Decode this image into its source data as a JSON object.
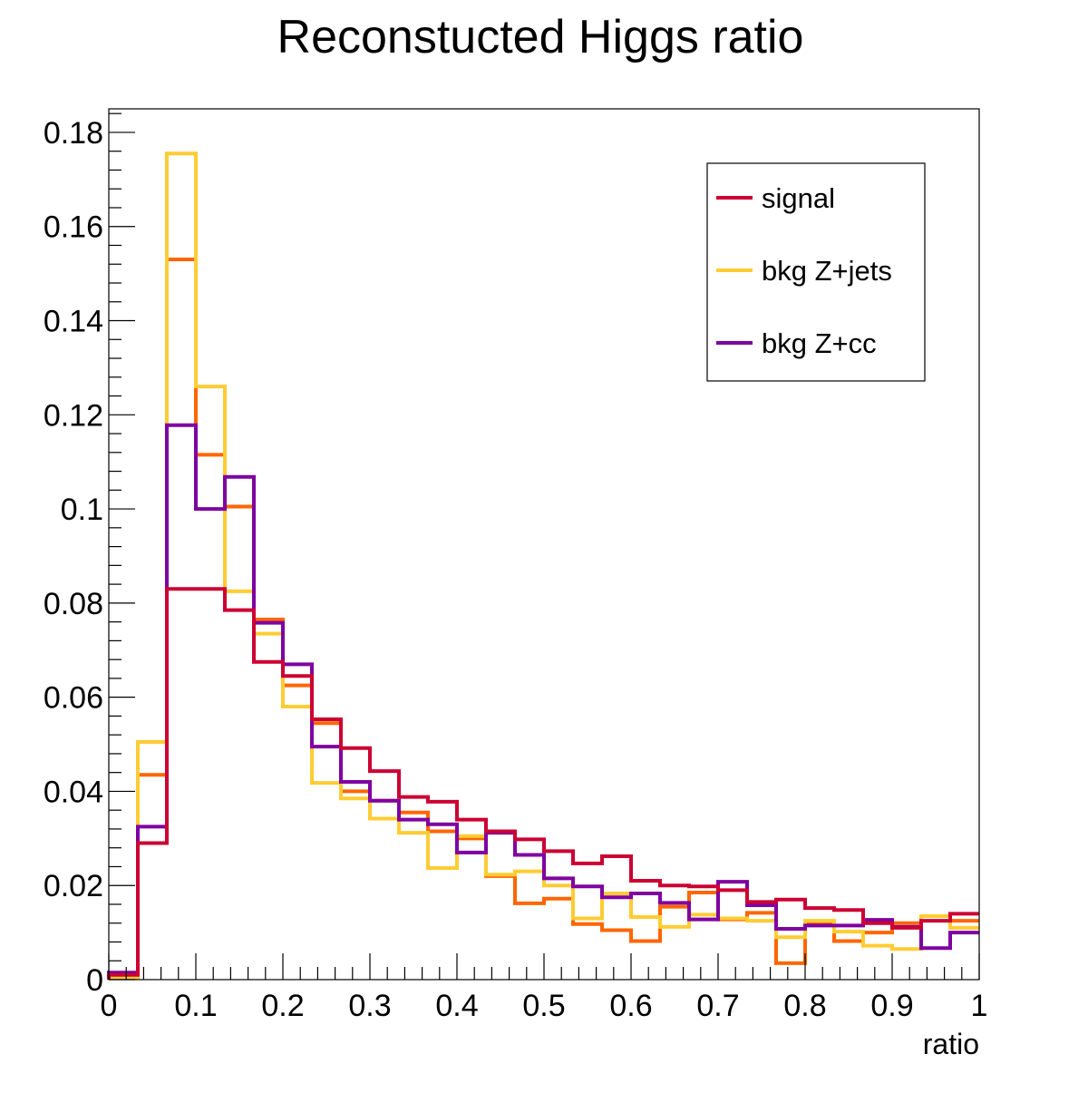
{
  "chart_data": {
    "type": "line",
    "style": "step-histogram",
    "title": "Reconstucted Higgs ratio",
    "xlabel": "ratio",
    "ylabel": "",
    "xlim": [
      0,
      1
    ],
    "ylim": [
      0,
      0.185
    ],
    "bin_width": 0.0333,
    "x_ticks": [
      {
        "value": 0,
        "label": "0"
      },
      {
        "value": 0.1,
        "label": "0.1"
      },
      {
        "value": 0.2,
        "label": "0.2"
      },
      {
        "value": 0.3,
        "label": "0.3"
      },
      {
        "value": 0.4,
        "label": "0.4"
      },
      {
        "value": 0.5,
        "label": "0.5"
      },
      {
        "value": 0.6,
        "label": "0.6"
      },
      {
        "value": 0.7,
        "label": "0.7"
      },
      {
        "value": 0.8,
        "label": "0.8"
      },
      {
        "value": 0.9,
        "label": "0.9"
      },
      {
        "value": 1,
        "label": "1"
      }
    ],
    "y_ticks": [
      {
        "value": 0,
        "label": "0"
      },
      {
        "value": 0.02,
        "label": "0.02"
      },
      {
        "value": 0.04,
        "label": "0.04"
      },
      {
        "value": 0.06,
        "label": "0.06"
      },
      {
        "value": 0.08,
        "label": "0.08"
      },
      {
        "value": 0.1,
        "label": "0.1"
      },
      {
        "value": 0.12,
        "label": "0.12"
      },
      {
        "value": 0.14,
        "label": "0.14"
      },
      {
        "value": 0.16,
        "label": "0.16"
      },
      {
        "value": 0.18,
        "label": "0.18"
      }
    ],
    "grid": false,
    "legend_position": "top-right",
    "series": [
      {
        "name": "",
        "color": "#ff6600",
        "in_legend": false,
        "values": [
          0.0005,
          0.0435,
          0.153,
          0.1115,
          0.1005,
          0.0765,
          0.0625,
          0.0545,
          0.04,
          0.038,
          0.0355,
          0.0315,
          0.03,
          0.022,
          0.0162,
          0.0172,
          0.0118,
          0.0105,
          0.0082,
          0.0155,
          0.0185,
          0.0128,
          0.0142,
          0.0035,
          0.0122,
          0.0082,
          0.01,
          0.012,
          0.0135,
          0.0125
        ]
      },
      {
        "name": "bkg Z+jets",
        "color": "#ffcc33",
        "in_legend": true,
        "values": [
          0.0005,
          0.0505,
          0.1755,
          0.126,
          0.0825,
          0.0735,
          0.058,
          0.0418,
          0.0385,
          0.0342,
          0.0312,
          0.0237,
          0.0305,
          0.0223,
          0.023,
          0.02,
          0.013,
          0.0183,
          0.0133,
          0.0112,
          0.0138,
          0.013,
          0.0125,
          0.009,
          0.0125,
          0.0102,
          0.0072,
          0.0065,
          0.0135,
          0.011
        ]
      },
      {
        "name": "bkg Z+cc",
        "color": "#7f00a0",
        "in_legend": true,
        "values": [
          0.0015,
          0.0325,
          0.1178,
          0.1,
          0.1068,
          0.0758,
          0.067,
          0.0495,
          0.042,
          0.038,
          0.034,
          0.033,
          0.027,
          0.0312,
          0.0265,
          0.0215,
          0.0198,
          0.0175,
          0.0183,
          0.0163,
          0.0128,
          0.0208,
          0.0158,
          0.0108,
          0.0115,
          0.0115,
          0.0127,
          0.0112,
          0.0067,
          0.01
        ]
      },
      {
        "name": "signal",
        "color": "#cc0033",
        "in_legend": true,
        "values": [
          0.001,
          0.029,
          0.083,
          0.083,
          0.0785,
          0.0675,
          0.0645,
          0.0553,
          0.0492,
          0.0443,
          0.0388,
          0.0378,
          0.034,
          0.0315,
          0.0298,
          0.0273,
          0.0247,
          0.0262,
          0.021,
          0.02,
          0.0198,
          0.019,
          0.0165,
          0.017,
          0.0152,
          0.0148,
          0.012,
          0.011,
          0.0125,
          0.014
        ]
      }
    ]
  },
  "legend": {
    "entries": [
      {
        "label": "signal",
        "color": "#cc0033"
      },
      {
        "label": "bkg Z+jets",
        "color": "#ffcc33"
      },
      {
        "label": "bkg Z+cc",
        "color": "#7f00a0"
      }
    ]
  }
}
